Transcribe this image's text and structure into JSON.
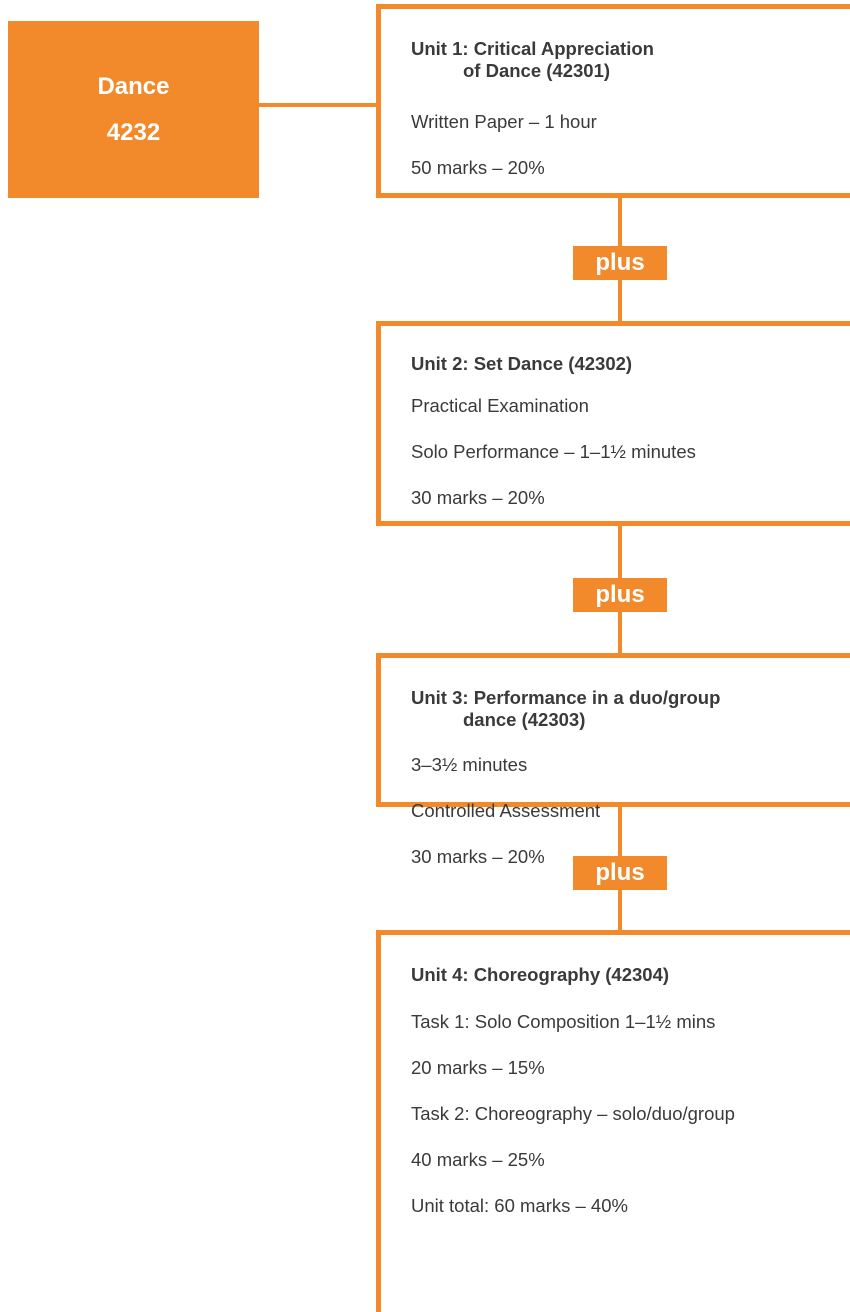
{
  "qualification": {
    "name": "Dance",
    "code": "4232"
  },
  "connector_label": "plus",
  "units": [
    {
      "title_line1": "Unit 1: Critical Appreciation",
      "title_line2": "of Dance (42301)",
      "lines": [
        "Written Paper – 1 hour",
        "50 marks – 20%"
      ]
    },
    {
      "title_line1": "Unit 2: Set Dance (42302)",
      "title_line2": "",
      "lines": [
        "Practical Examination",
        "Solo Performance – 1–1½ minutes",
        "30 marks – 20%"
      ]
    },
    {
      "title_line1": "Unit 3: Performance in a duo/group",
      "title_line2": "dance (42303)",
      "lines": [
        "3–3½ minutes",
        "Controlled Assessment",
        "30 marks – 20%"
      ]
    },
    {
      "title_line1": "Unit 4: Choreography (42304)",
      "title_line2": "",
      "lines": [
        "Task 1: Solo Composition 1–1½ mins",
        "20 marks – 15%",
        "Task 2: Choreography – solo/duo/group",
        "40 marks – 25%",
        "Unit total: 60 marks – 40%"
      ]
    }
  ],
  "colors": {
    "accent": "#f28a2b",
    "text": "#3a3a3a"
  }
}
